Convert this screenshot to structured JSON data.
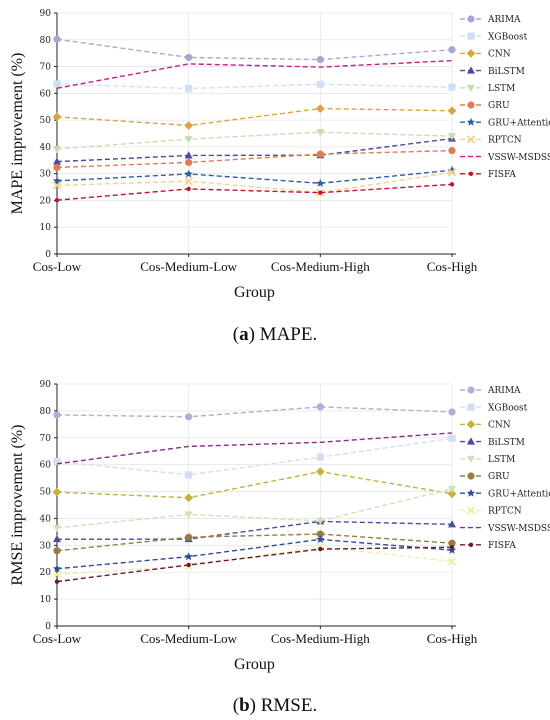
{
  "chart_data": [
    {
      "type": "line",
      "caption_letter": "a",
      "caption_text": "MAPE.",
      "xlabel": "Group",
      "ylabel": "MAPE improvement (%)",
      "ylim": [
        0,
        90
      ],
      "yticks": [
        0,
        10,
        20,
        30,
        40,
        50,
        60,
        70,
        80,
        90
      ],
      "categories": [
        "Cos-Low",
        "Cos-Medium-Low",
        "Cos-Medium-High",
        "Cos-High"
      ],
      "grid": true,
      "legend_position": "top-right",
      "series": [
        {
          "name": "ARIMA",
          "color": "#a9a6d6",
          "marker": "circle",
          "values": [
            80.2,
            73.4,
            72.6,
            76.3
          ]
        },
        {
          "name": "XGBoost",
          "color": "#cfe0f5",
          "marker": "square",
          "values": [
            63.5,
            61.8,
            63.4,
            62.3
          ]
        },
        {
          "name": "CNN",
          "color": "#d9a441",
          "marker": "diamond",
          "values": [
            51.2,
            48.0,
            54.3,
            53.5
          ]
        },
        {
          "name": "BiLSTM",
          "color": "#4c4a9a",
          "marker": "triangle-up",
          "values": [
            34.5,
            36.8,
            36.9,
            43.1
          ]
        },
        {
          "name": "LSTM",
          "color": "#c3dfb0",
          "marker": "triangle-down",
          "values": [
            39.2,
            42.9,
            45.5,
            44.0
          ]
        },
        {
          "name": "GRU",
          "color": "#e07b56",
          "marker": "circle",
          "values": [
            32.3,
            34.2,
            37.3,
            38.6
          ]
        },
        {
          "name": "GRU+Attention",
          "color": "#2f5ea3",
          "marker": "star",
          "values": [
            27.3,
            29.9,
            26.4,
            31.3
          ]
        },
        {
          "name": "RPTCN",
          "color": "#f3d38d",
          "marker": "x",
          "values": [
            25.6,
            27.2,
            22.9,
            30.5
          ]
        },
        {
          "name": "VSSW-MSDSS",
          "color": "#c81d86",
          "marker": "none",
          "values": [
            61.9,
            71.0,
            69.8,
            72.2
          ]
        },
        {
          "name": "FISFA",
          "color": "#c0142b",
          "marker": "dot",
          "values": [
            20.1,
            24.3,
            22.9,
            26.0
          ]
        }
      ]
    },
    {
      "type": "line",
      "caption_letter": "b",
      "caption_text": "RMSE.",
      "xlabel": "Group",
      "ylabel": "RMSE improvement (%)",
      "ylim": [
        0,
        90
      ],
      "yticks": [
        0,
        10,
        20,
        30,
        40,
        50,
        60,
        70,
        80,
        90
      ],
      "categories": [
        "Cos-Low",
        "Cos-Medium-Low",
        "Cos-Medium-High",
        "Cos-High"
      ],
      "grid": true,
      "legend_position": "top-right",
      "series": [
        {
          "name": "ARIMA",
          "color": "#b2acd8",
          "marker": "circle",
          "values": [
            78.5,
            77.8,
            81.5,
            79.6
          ]
        },
        {
          "name": "XGBoost",
          "color": "#d2dff2",
          "marker": "square",
          "values": [
            61.2,
            56.2,
            62.8,
            69.8
          ]
        },
        {
          "name": "CNN",
          "color": "#c6b03e",
          "marker": "diamond",
          "values": [
            49.8,
            47.7,
            57.4,
            49.2
          ]
        },
        {
          "name": "BiLSTM",
          "color": "#4c4a9a",
          "marker": "triangle-up",
          "values": [
            32.3,
            32.3,
            38.9,
            37.8
          ]
        },
        {
          "name": "LSTM",
          "color": "#cde3b6",
          "marker": "triangle-down",
          "values": [
            36.5,
            41.5,
            39.1,
            51.0
          ]
        },
        {
          "name": "GRU",
          "color": "#9a7b45",
          "marker": "circle",
          "values": [
            28.0,
            33.0,
            34.2,
            30.8
          ]
        },
        {
          "name": "GRU+Attention",
          "color": "#2f4e9a",
          "marker": "star",
          "values": [
            21.3,
            25.8,
            32.2,
            28.2
          ]
        },
        {
          "name": "RPTCN",
          "color": "#ecf0a6",
          "marker": "x",
          "values": [
            19.2,
            22.3,
            29.4,
            24.0
          ]
        },
        {
          "name": "VSSW-MSDSS",
          "color": "#8a2a8a",
          "marker": "none",
          "values": [
            60.3,
            66.8,
            68.3,
            71.8
          ]
        },
        {
          "name": "FISFA",
          "color": "#6b1a2a",
          "marker": "dot",
          "values": [
            16.5,
            22.7,
            28.6,
            29.3
          ]
        }
      ]
    }
  ]
}
